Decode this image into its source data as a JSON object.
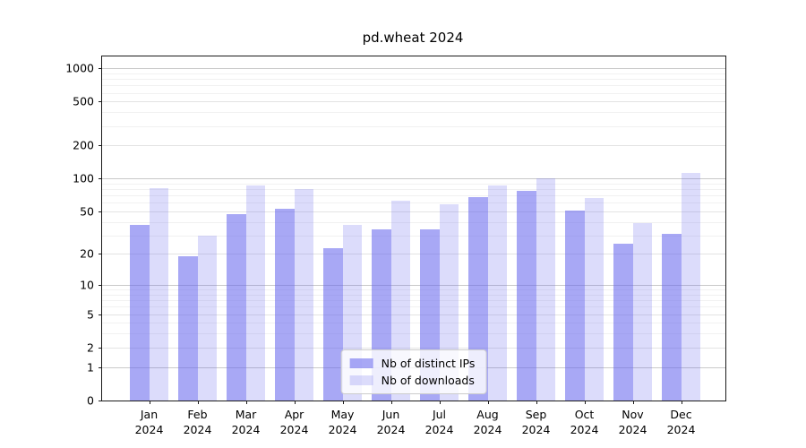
{
  "title": "pd.wheat 2024",
  "chart_data": {
    "type": "bar",
    "title": "pd.wheat 2024",
    "y_scale": "log1p",
    "grid": "on",
    "legend_position": "lower center",
    "categories": [
      "Jan",
      "Feb",
      "Mar",
      "Apr",
      "May",
      "Jun",
      "Jul",
      "Aug",
      "Sep",
      "Oct",
      "Nov",
      "Dec"
    ],
    "x_tick_year": "2024",
    "series": [
      {
        "name": "Nb of distinct IPs",
        "color": "rgba(102,102,238,0.57)",
        "values": [
          38,
          19,
          47,
          53,
          23,
          34,
          34,
          68,
          78,
          51,
          25,
          31
        ]
      },
      {
        "name": "Nb of downloads",
        "color": "rgba(95,95,235,0.22)",
        "values": [
          82,
          30,
          86,
          81,
          38,
          63,
          58,
          87,
          100,
          67,
          39,
          112
        ]
      }
    ],
    "y_ticks": [
      0,
      1,
      2,
      5,
      10,
      20,
      50,
      100,
      200,
      500,
      1000
    ],
    "y_minor_ticks": [
      3,
      4,
      6,
      7,
      8,
      9,
      30,
      40,
      60,
      70,
      80,
      90,
      300,
      400,
      600,
      700,
      800,
      900
    ],
    "ylim": [
      0,
      1280
    ]
  },
  "legend": {
    "items": [
      {
        "label": "Nb of distinct IPs"
      },
      {
        "label": "Nb of downloads"
      }
    ]
  },
  "colors": {
    "grid_decade": "#c9c9c9",
    "grid_mid": "#e3e3e3",
    "grid_minor": "#f1f1f1",
    "axis": "#1a1a1a",
    "text": "#000000",
    "background": "#ffffff"
  }
}
